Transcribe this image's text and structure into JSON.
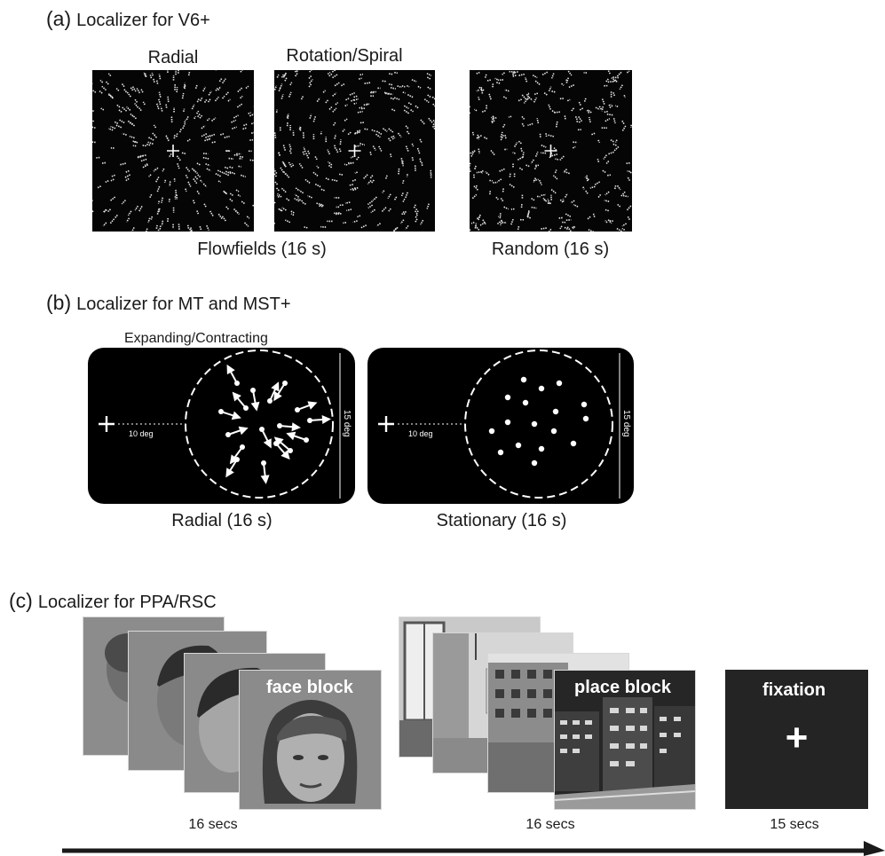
{
  "section_a": {
    "letter": "(a)",
    "title": "Localizer for V6+",
    "stim_radial": "Radial",
    "stim_rotation": "Rotation/Spiral",
    "caption_flowfields": "Flowfields (16 s)",
    "caption_random": "Random (16 s)"
  },
  "section_b": {
    "letter": "(b)",
    "title": "Localizer for MT and MST+",
    "label_expanding": "Expanding/Contracting",
    "eccentricity": "10 deg",
    "diameter": "15 deg",
    "caption_radial": "Radial (16 s)",
    "caption_stationary": "Stationary (16 s)"
  },
  "section_c": {
    "letter": "(c)",
    "title": "Localizer for PPA/RSC",
    "face_block": "face block",
    "place_block": "place block",
    "fixation": "fixation",
    "fixation_symbol": "+",
    "face_duration": "16 secs",
    "place_duration": "16 secs",
    "fixation_duration": "15 secs"
  },
  "colors": {
    "background": "#ffffff",
    "panel": "#000000",
    "card_gray": "#8a8a8a",
    "fixation_bg": "#242424"
  }
}
